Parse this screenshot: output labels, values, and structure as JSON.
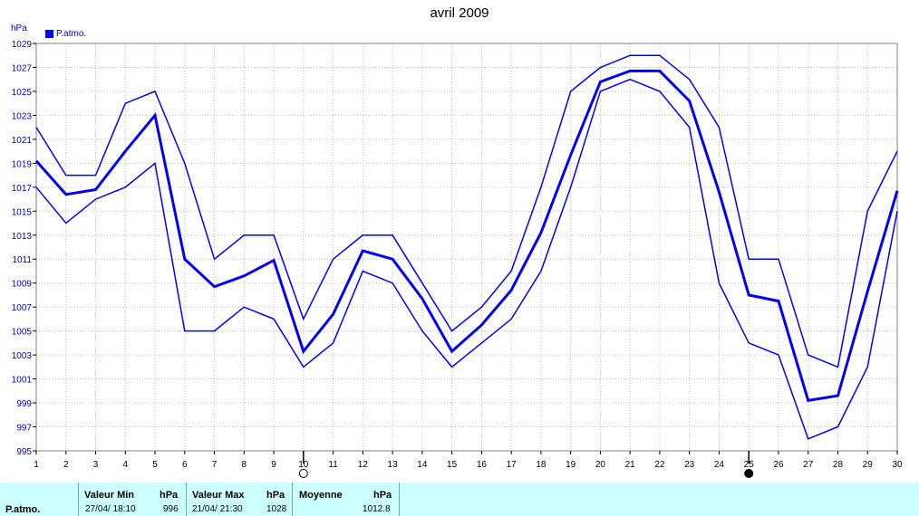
{
  "chart_data": {
    "type": "line",
    "title": "avril 2009",
    "ylabel": "hPa",
    "ylim": [
      995,
      1029
    ],
    "yticks": [
      995,
      997,
      999,
      1001,
      1003,
      1005,
      1007,
      1009,
      1011,
      1013,
      1015,
      1017,
      1019,
      1021,
      1023,
      1025,
      1027,
      1029
    ],
    "x": [
      1,
      2,
      3,
      4,
      5,
      6,
      7,
      8,
      9,
      10,
      11,
      12,
      13,
      14,
      15,
      16,
      17,
      18,
      19,
      20,
      21,
      22,
      23,
      24,
      25,
      26,
      27,
      28,
      29,
      30
    ],
    "grid": true,
    "legend": {
      "position": "top-left",
      "entries": [
        {
          "label": "P.atmo.",
          "color": "#0000ff"
        }
      ]
    },
    "series": [
      {
        "role": "max",
        "color": "#0000ff",
        "width": 1.5,
        "values": [
          1022,
          1018,
          1018,
          1024,
          1025,
          1019,
          1011,
          1013,
          1013,
          1006,
          1011,
          1013,
          1013,
          1009,
          1005,
          1007,
          1010,
          1017,
          1025,
          1027,
          1028,
          1028,
          1026,
          1022,
          1011,
          1011,
          1003,
          1002,
          1015,
          1020
        ]
      },
      {
        "role": "mean",
        "color": "#0000ff",
        "width": 3,
        "values": [
          1019.2,
          1016.4,
          1016.8,
          1020.0,
          1023.0,
          1011.0,
          1008.7,
          1009.6,
          1010.9,
          1003.3,
          1006.4,
          1011.7,
          1011.0,
          1007.7,
          1003.3,
          1005.5,
          1008.4,
          1013.2,
          1019.7,
          1025.8,
          1026.7,
          1026.7,
          1024.2,
          1016.6,
          1008.0,
          1007.5,
          999.2,
          999.6,
          1008.3,
          1016.7
        ]
      },
      {
        "role": "min",
        "color": "#0000ff",
        "width": 1.5,
        "values": [
          1017,
          1014,
          1016,
          1017,
          1019,
          1005,
          1005,
          1007,
          1006,
          1002,
          1004,
          1010,
          1009,
          1005,
          1002,
          1004,
          1006,
          1010,
          1017,
          1025,
          1026,
          1025,
          1022,
          1009,
          1004,
          1003,
          996,
          997,
          1002,
          1015
        ]
      }
    ],
    "moon_markers": [
      {
        "day": 10,
        "icon": "full-moon-icon"
      },
      {
        "day": 25,
        "icon": "new-moon-icon"
      }
    ]
  },
  "footer": {
    "row_label": "P.atmo.",
    "min_header": "Valeur Min",
    "min_unit": "hPa",
    "min_date": "27/04/  18:10",
    "min_value": "996",
    "max_header": "Valeur Max",
    "max_unit": "hPa",
    "max_date": "21/04/  21:30",
    "max_value": "1028",
    "avg_header": "Moyenne",
    "avg_unit": "hPa",
    "avg_value": "1012.8"
  }
}
